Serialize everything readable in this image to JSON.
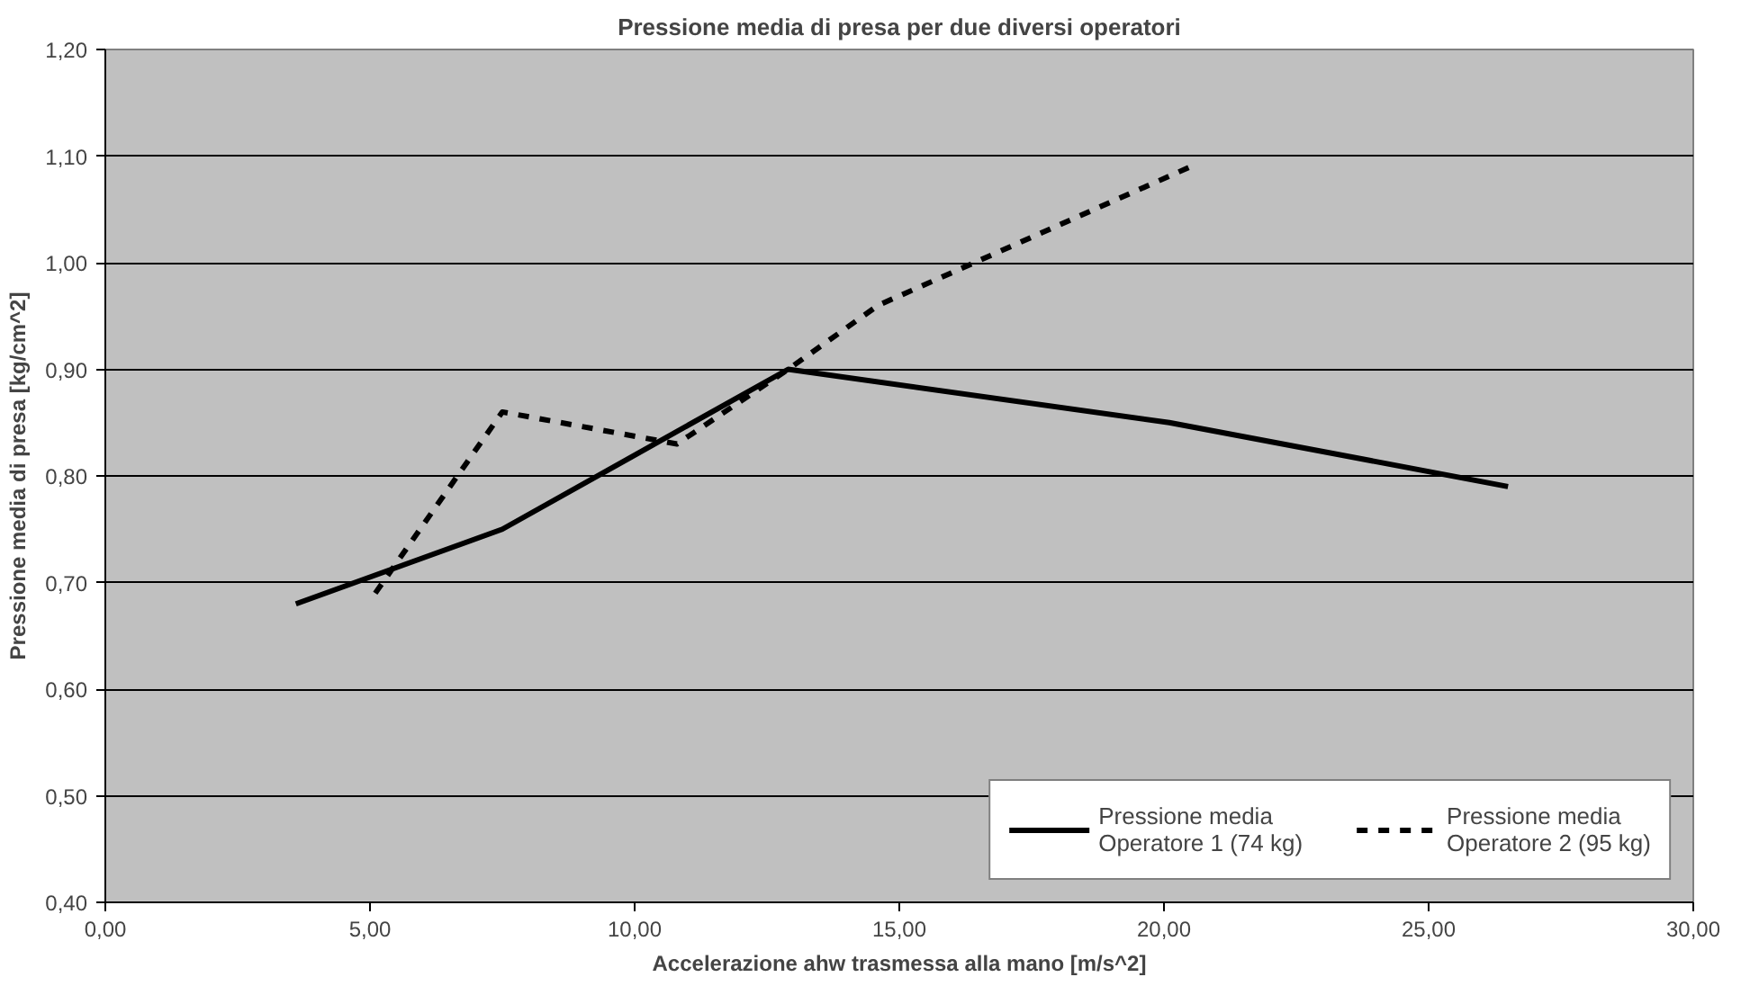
{
  "chart_data": {
    "type": "line",
    "title": "Pressione media di presa per due diversi operatori",
    "xlabel": "Accelerazione ahw trasmessa alla mano [m/s^2]",
    "ylabel": "Pressione media di presa [kg/cm^2]",
    "series": [
      {
        "name": "Pressione media\nOperatore 1 (74 kg)",
        "color": "#000000",
        "line_style": "solid",
        "x": [
          3.6,
          7.5,
          12.9,
          20.1,
          26.5
        ],
        "values": [
          0.68,
          0.75,
          0.9,
          0.85,
          0.79
        ]
      },
      {
        "name": "Pressione media\nOperatore 2 (95 kg)",
        "color": "#000000",
        "line_style": "dashed",
        "x": [
          5.1,
          7.5,
          10.8,
          12.9,
          14.6,
          20.5
        ],
        "values": [
          0.69,
          0.86,
          0.83,
          0.9,
          0.96,
          1.09
        ]
      }
    ],
    "xlim": [
      0,
      30
    ],
    "ylim": [
      0.4,
      1.2
    ],
    "xticks": [
      {
        "value": 0,
        "label": "0,00"
      },
      {
        "value": 5,
        "label": "5,00"
      },
      {
        "value": 10,
        "label": "10,00"
      },
      {
        "value": 15,
        "label": "15,00"
      },
      {
        "value": 20,
        "label": "20,00"
      },
      {
        "value": 25,
        "label": "25,00"
      },
      {
        "value": 30,
        "label": "30,00"
      }
    ],
    "yticks": [
      {
        "value": 0.4,
        "label": "0,40"
      },
      {
        "value": 0.5,
        "label": "0,50"
      },
      {
        "value": 0.6,
        "label": "0,60"
      },
      {
        "value": 0.7,
        "label": "0,70"
      },
      {
        "value": 0.8,
        "label": "0,80"
      },
      {
        "value": 0.9,
        "label": "0,90"
      },
      {
        "value": 1.0,
        "label": "1,00"
      },
      {
        "value": 1.1,
        "label": "1,10"
      },
      {
        "value": 1.2,
        "label": "1,20"
      }
    ],
    "grid": "y",
    "legend": "bottom right"
  }
}
